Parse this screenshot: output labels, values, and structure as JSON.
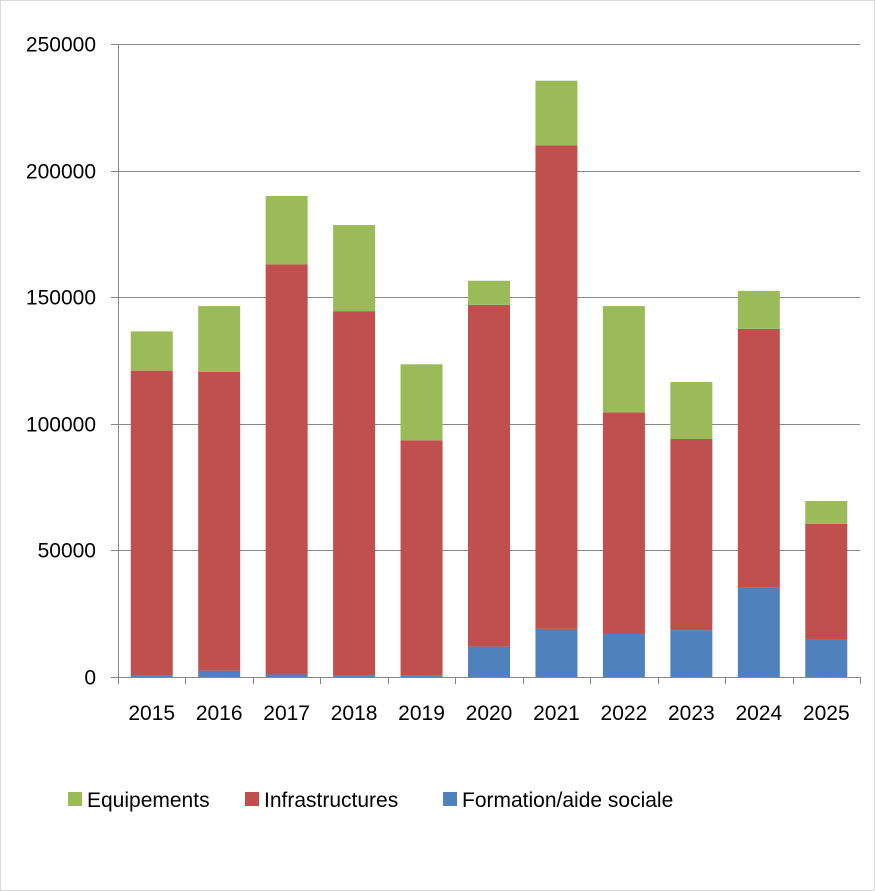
{
  "chart_data": {
    "type": "bar",
    "stacked": true,
    "categories": [
      "2015",
      "2016",
      "2017",
      "2018",
      "2019",
      "2020",
      "2021",
      "2022",
      "2023",
      "2024",
      "2025"
    ],
    "series": [
      {
        "name": "Formation/aide sociale",
        "color": "#4f81bd",
        "values": [
          500,
          2500,
          1000,
          500,
          500,
          12000,
          19000,
          17000,
          18500,
          35500,
          15000
        ]
      },
      {
        "name": "Infrastructures",
        "color": "#c0504d",
        "values": [
          120500,
          118000,
          162000,
          144000,
          93000,
          135000,
          191000,
          87500,
          75500,
          102000,
          45500
        ]
      },
      {
        "name": "Equipements",
        "color": "#9bbb59",
        "values": [
          15500,
          26000,
          27000,
          34000,
          30000,
          9500,
          25500,
          42000,
          22500,
          15000,
          9000
        ]
      }
    ],
    "legend_order": [
      "Equipements",
      "Infrastructures",
      "Formation/aide sociale"
    ],
    "y_ticks": [
      "0",
      "50000",
      "100000",
      "150000",
      "200000",
      "250000"
    ],
    "ylim": [
      0,
      250000
    ],
    "grid": true,
    "legend_position": "bottom",
    "gridline_color": "#868686",
    "axis_color": "#868686"
  }
}
